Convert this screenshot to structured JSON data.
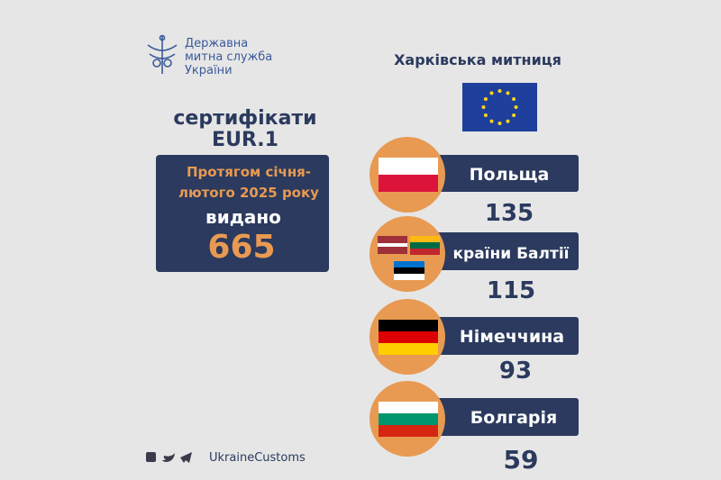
{
  "logo": {
    "lines": [
      "Державна",
      "митна служба",
      "України"
    ]
  },
  "header": {
    "title": "Харківська митниця"
  },
  "left": {
    "title_lines": [
      "сертифікати",
      "EUR.1"
    ],
    "period_lines": [
      "Протягом січня-",
      "лютого 2025 року"
    ],
    "issued_label": "видано",
    "total": 665
  },
  "countries": [
    {
      "name": "Польща",
      "value": 135
    },
    {
      "name": "країни Балтії",
      "value": 115
    },
    {
      "name": "Німеччина",
      "value": 93
    },
    {
      "name": "Болгарія",
      "value": 59
    }
  ],
  "footer": {
    "handle": "UkraineCustoms"
  }
}
